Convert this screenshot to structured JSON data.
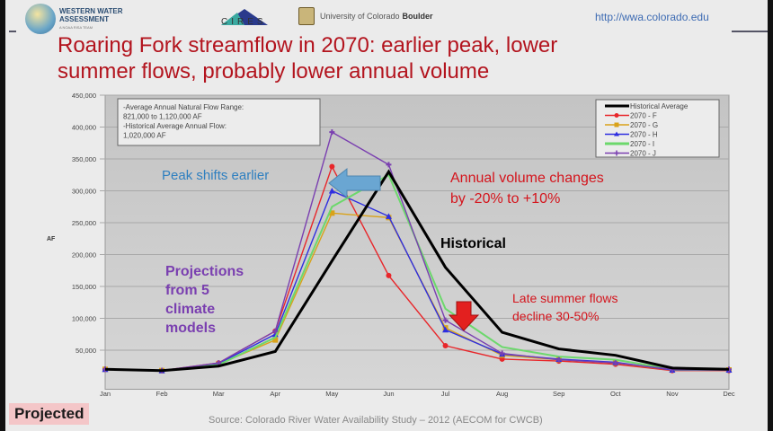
{
  "header": {
    "wwa_logo_line1": "WESTERN WATER",
    "wwa_logo_line2": "ASSESSMENT",
    "wwa_logo_tagline": "A NOAA RISA TEAM",
    "cires_logo": "CIRES",
    "cu_logo_text": "University of Colorado",
    "cu_logo_bold": "Boulder",
    "url": "http://wwa.colorado.edu"
  },
  "title_line1": "Roaring Fork streamflow in 2070: earlier peak, lower",
  "title_line2": "summer flows, probably lower annual volume",
  "projected_label": "Projected",
  "source": "Source: Colorado River Water Availability Study – 2012 (AECOM for CWCB)",
  "colors": {
    "title": "#b3141e",
    "historical": "#000000",
    "F": "#e8262a",
    "G": "#d9a21a",
    "H": "#2e2ee0",
    "I": "#6cd86c",
    "J": "#7a3fb0"
  },
  "chart_data": {
    "type": "line",
    "title": "",
    "xlabel": "",
    "ylabel": "AF",
    "ylim": [
      0,
      450000
    ],
    "yticks": [
      "50,000",
      "100,000",
      "150,000",
      "200,000",
      "250,000",
      "300,000",
      "350,000",
      "400,000",
      "450,000"
    ],
    "ytick_values": [
      50000,
      100000,
      150000,
      200000,
      250000,
      300000,
      350000,
      400000,
      450000
    ],
    "categories": [
      "Jan",
      "Feb",
      "Mar",
      "Apr",
      "May",
      "Jun",
      "Jul",
      "Aug",
      "Sep",
      "Oct",
      "Nov",
      "Dec"
    ],
    "grid": true,
    "legend_position": "top-right",
    "series": [
      {
        "name": "Historical Average",
        "key": "historical",
        "marker": "none",
        "values": [
          20000,
          18000,
          25000,
          48000,
          190000,
          330000,
          180000,
          78000,
          52000,
          42000,
          22000,
          20000
        ]
      },
      {
        "name": "2070 - F",
        "key": "F",
        "marker": "circle",
        "values": [
          20000,
          18000,
          30000,
          80000,
          338000,
          167000,
          57000,
          36000,
          33000,
          28000,
          18000,
          18000
        ]
      },
      {
        "name": "2070 - G",
        "key": "G",
        "marker": "square",
        "values": [
          20000,
          18000,
          28000,
          66000,
          265000,
          258000,
          85000,
          42000,
          35000,
          30000,
          19000,
          19000
        ]
      },
      {
        "name": "2070 - H",
        "key": "H",
        "marker": "triangle",
        "values": [
          20000,
          18000,
          29000,
          75000,
          300000,
          260000,
          82000,
          44000,
          36000,
          31000,
          19000,
          19000
        ]
      },
      {
        "name": "2070 - I",
        "key": "I",
        "marker": "none",
        "values": [
          20000,
          18000,
          27000,
          70000,
          275000,
          325000,
          115000,
          55000,
          40000,
          35000,
          20000,
          20000
        ]
      },
      {
        "name": "2070 - J",
        "key": "J",
        "marker": "plus",
        "values": [
          20000,
          18000,
          30000,
          80000,
          392000,
          341000,
          97000,
          45000,
          35000,
          30000,
          20000,
          20000
        ]
      }
    ],
    "info_box": [
      "-Average Annual Natural Flow Range:",
      "  821,000 to 1,120,000 AF",
      "-Historical Average Annual Flow:",
      "  1,020,000 AF"
    ],
    "annotations": {
      "peak": "Peak shifts earlier",
      "volume1": "Annual volume changes",
      "volume2": "by -20% to +10%",
      "historical": "Historical",
      "proj1": "Projections",
      "proj2": "from 5",
      "proj3": "climate",
      "proj4": "models",
      "late1": "Late summer flows",
      "late2": "decline 30-50%"
    }
  }
}
